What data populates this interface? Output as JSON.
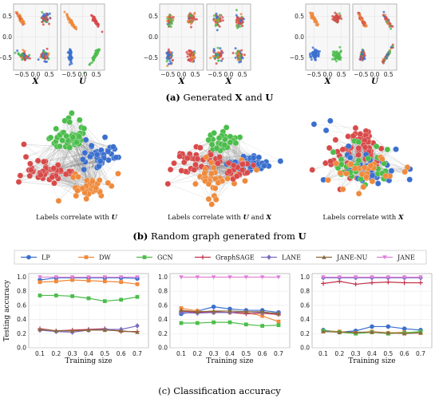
{
  "colors": {
    "blue": "#3b6fce",
    "orange": "#ef8a3c",
    "green": "#4cbd4c",
    "red": "#d84a4a",
    "purple": "#7b6bc4",
    "brown": "#8a6a3c",
    "pink": "#e07fd7",
    "line_red": "#c0324a"
  },
  "captions": {
    "a_label": "(a)",
    "a_text": " Generated ",
    "a_x": "X",
    "a_and": " and ",
    "a_u": "U",
    "b_label": "(b)",
    "b_text": " Random graph generated from ",
    "b_u": "U",
    "c_label": "(c)",
    "c_text": " Classification accuracy"
  },
  "scatter_axes": {
    "xticks": [
      "−0.5",
      "0.0",
      "0.5"
    ],
    "yticks": [
      "0.5",
      "0.0",
      "−0.5"
    ],
    "xlabel_x": "X",
    "xlabel_u": "U"
  },
  "graph_labels": [
    {
      "pre": "Labels correlate with ",
      "b1": "U",
      "mid": "",
      "b2": ""
    },
    {
      "pre": "Labels correlate with ",
      "b1": "U",
      "mid": " and ",
      "b2": "X"
    },
    {
      "pre": "Labels correlate with ",
      "b1": "X",
      "mid": "",
      "b2": ""
    }
  ],
  "chart_data": [
    {
      "type": "line",
      "xlabel": "Training size",
      "ylabel": "Testing accuracy",
      "x": [
        0.1,
        0.2,
        0.3,
        0.4,
        0.5,
        0.6,
        0.7
      ],
      "xticks": [
        "0.1",
        "0.2",
        "0.3",
        "0.4",
        "0.5",
        "0.6",
        "0.7"
      ],
      "ylim": [
        0.0,
        1.05
      ],
      "yticks": [
        "0.0",
        "0.2",
        "0.4",
        "0.6",
        "0.8",
        "1.0"
      ],
      "series": [
        {
          "name": "LP",
          "values": [
            0.96,
            0.99,
            0.99,
            0.99,
            0.99,
            0.99,
            0.98
          ]
        },
        {
          "name": "DW",
          "values": [
            0.93,
            0.94,
            0.96,
            0.95,
            0.94,
            0.93,
            0.9
          ]
        },
        {
          "name": "GCN",
          "values": [
            0.74,
            0.74,
            0.73,
            0.7,
            0.66,
            0.68,
            0.72
          ]
        },
        {
          "name": "GraphSAGE",
          "values": [
            0.27,
            0.24,
            0.25,
            0.26,
            0.27,
            0.23,
            0.23
          ]
        },
        {
          "name": "LANE",
          "values": [
            0.25,
            0.23,
            0.22,
            0.25,
            0.26,
            0.26,
            0.31
          ]
        },
        {
          "name": "JANE-NU",
          "values": [
            0.26,
            0.24,
            0.24,
            0.25,
            0.25,
            0.24,
            0.22
          ]
        },
        {
          "name": "JANE",
          "values": [
            1.0,
            1.0,
            1.0,
            1.0,
            1.0,
            1.0,
            1.0
          ]
        }
      ]
    },
    {
      "type": "line",
      "xlabel": "Training size",
      "ylabel": "Testing accuracy",
      "x": [
        0.1,
        0.2,
        0.3,
        0.4,
        0.5,
        0.6,
        0.7
      ],
      "xticks": [
        "0.1",
        "0.2",
        "0.3",
        "0.4",
        "0.5",
        "0.6",
        "0.7"
      ],
      "ylim": [
        0.0,
        1.05
      ],
      "yticks": [
        "0.0",
        "0.2",
        "0.4",
        "0.6",
        "0.8",
        "1.0"
      ],
      "series": [
        {
          "name": "LP",
          "values": [
            0.48,
            0.52,
            0.58,
            0.55,
            0.53,
            0.53,
            0.5
          ]
        },
        {
          "name": "DW",
          "values": [
            0.56,
            0.52,
            0.5,
            0.5,
            0.5,
            0.45,
            0.37
          ]
        },
        {
          "name": "GCN",
          "values": [
            0.35,
            0.35,
            0.36,
            0.36,
            0.33,
            0.31,
            0.32
          ]
        },
        {
          "name": "GraphSAGE",
          "values": [
            0.52,
            0.5,
            0.51,
            0.5,
            0.48,
            0.49,
            0.47
          ]
        },
        {
          "name": "LANE",
          "values": [
            0.5,
            0.49,
            0.5,
            0.5,
            0.51,
            0.5,
            0.49
          ]
        },
        {
          "name": "JANE-NU",
          "values": [
            0.53,
            0.51,
            0.52,
            0.52,
            0.51,
            0.51,
            0.48
          ]
        },
        {
          "name": "JANE",
          "values": [
            1.0,
            1.0,
            1.0,
            1.0,
            1.0,
            1.0,
            1.0
          ]
        }
      ]
    },
    {
      "type": "line",
      "xlabel": "Training size",
      "ylabel": "Testing accuracy",
      "x": [
        0.1,
        0.2,
        0.3,
        0.4,
        0.5,
        0.6,
        0.7
      ],
      "xticks": [
        "0.1",
        "0.2",
        "0.3",
        "0.4",
        "0.5",
        "0.6",
        "0.7"
      ],
      "ylim": [
        0.0,
        1.05
      ],
      "yticks": [
        "0.0",
        "0.2",
        "0.4",
        "0.6",
        "0.8",
        "1.0"
      ],
      "series": [
        {
          "name": "LP",
          "values": [
            0.25,
            0.22,
            0.24,
            0.3,
            0.3,
            0.27,
            0.25
          ]
        },
        {
          "name": "DW",
          "values": [
            0.24,
            0.23,
            0.21,
            0.23,
            0.21,
            0.22,
            0.21
          ]
        },
        {
          "name": "GCN",
          "values": [
            0.24,
            0.22,
            0.2,
            0.22,
            0.2,
            0.21,
            0.23
          ]
        },
        {
          "name": "GraphSAGE",
          "values": [
            0.91,
            0.94,
            0.9,
            0.92,
            0.93,
            0.92,
            0.92
          ]
        },
        {
          "name": "LANE",
          "values": [
            0.99,
            0.99,
            0.99,
            0.99,
            0.99,
            0.99,
            0.99
          ]
        },
        {
          "name": "JANE-NU",
          "values": [
            0.23,
            0.22,
            0.22,
            0.22,
            0.21,
            0.2,
            0.21
          ]
        },
        {
          "name": "JANE",
          "values": [
            1.0,
            1.0,
            1.0,
            1.0,
            1.0,
            1.0,
            1.0
          ]
        }
      ]
    }
  ]
}
